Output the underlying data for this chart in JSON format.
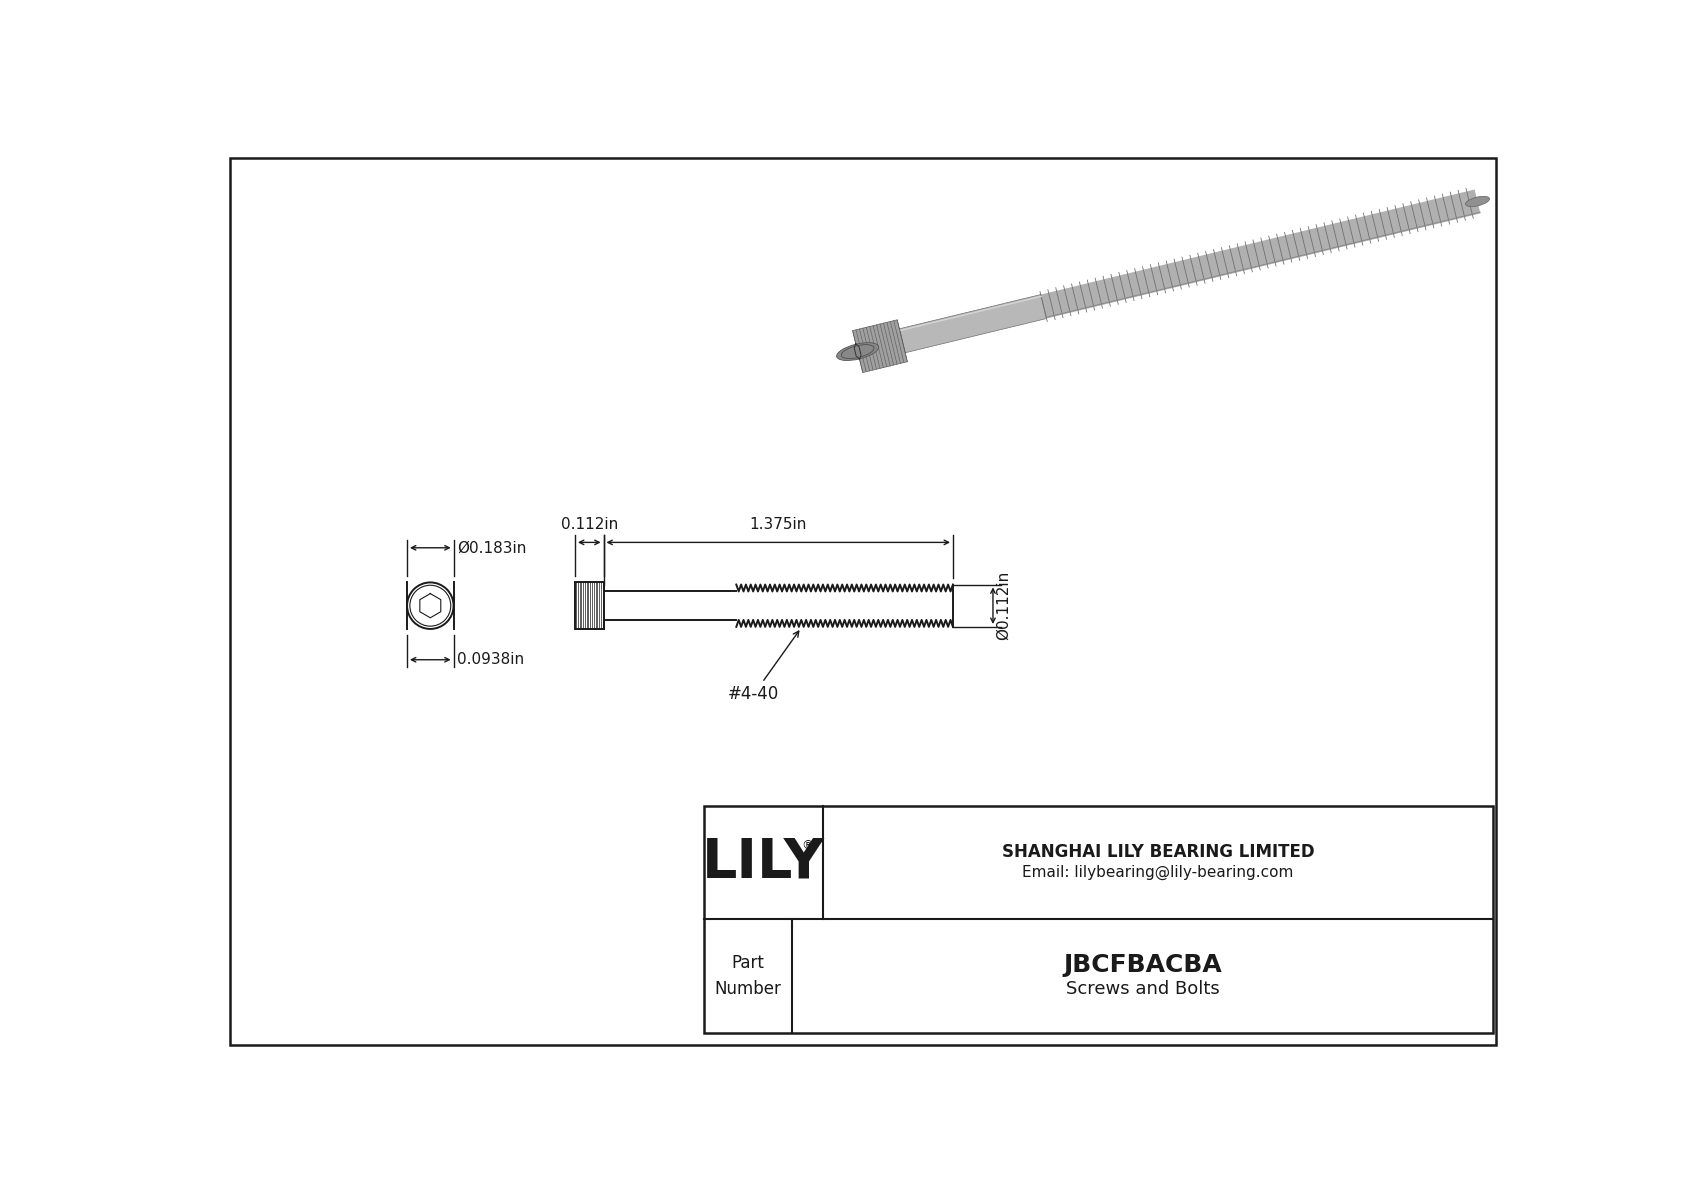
{
  "bg_color": "#ffffff",
  "line_color": "#1a1a1a",
  "border_color": "#1a1a1a",
  "title": "JBCFBACBA",
  "subtitle": "Screws and Bolts",
  "company": "SHANGHAI LILY BEARING LIMITED",
  "email": "Email: lilybearing@lily-bearing.com",
  "part_label": "Part\nNumber",
  "logo_text": "LILY",
  "logo_reg": "®",
  "dim_head_width": "0.183in",
  "dim_head_depth": "0.0938in",
  "dim_shank_length": "1.375in",
  "dim_head_height": "0.112in",
  "dim_shaft_dia": "0.112in",
  "thread_label": "#4-40",
  "gray_3d": "#9e9e9e",
  "gray_3d_dark": "#7a7a7a",
  "gray_3d_light": "#c0c0c0"
}
